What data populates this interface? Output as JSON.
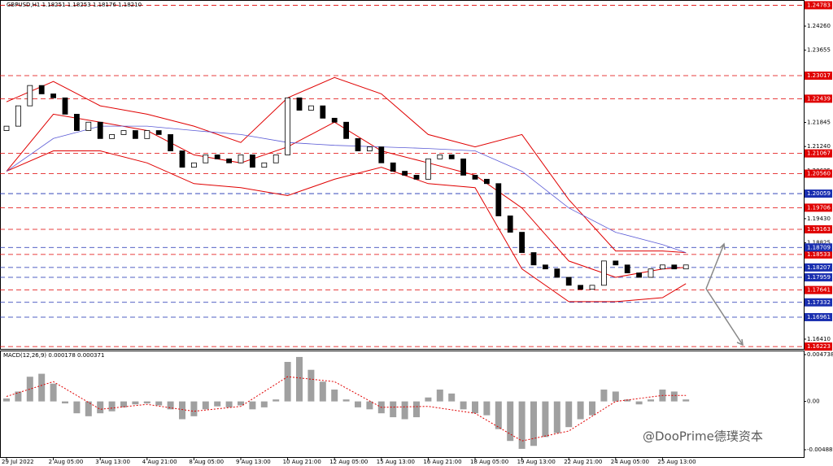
{
  "chart_data": [
    {
      "type": "candlestick",
      "title": "GBPUSD,H1 1.18251 1.18253 1.18176 1.18210",
      "watermark": "@DooPrime德璞资本",
      "color": "#000000",
      "categories": [
        "29 Jul 2022",
        null,
        null,
        null,
        "2 Aug 05:00",
        null,
        null,
        null,
        "3 Aug 13:00",
        null,
        null,
        null,
        "4 Aug 21:00",
        null,
        null,
        null,
        "8 Aug 05:00",
        null,
        null,
        null,
        "9 Aug 13:00",
        null,
        null,
        null,
        "10 Aug 21:00",
        null,
        null,
        null,
        "12 Aug 05:00",
        null,
        null,
        null,
        "15 Aug 13:00",
        null,
        null,
        null,
        "16 Aug 21:00",
        null,
        null,
        null,
        "18 Aug 05:00",
        null,
        null,
        null,
        "19 Aug 13:00",
        null,
        null,
        null,
        "22 Aug 21:00",
        null,
        null,
        null,
        "24 Aug 05:00",
        null,
        null,
        null,
        "25 Aug 13:00",
        null,
        null
      ],
      "open": [
        1.2164,
        1.2175,
        1.2226,
        1.2277,
        1.2256,
        1.2246,
        1.2205,
        1.2164,
        1.2185,
        1.2144,
        1.2154,
        1.2164,
        1.2144,
        1.2164,
        1.2154,
        1.2113,
        1.2072,
        1.2083,
        1.2103,
        1.2093,
        1.2083,
        1.2103,
        1.2072,
        1.2083,
        1.2103,
        1.2246,
        1.2215,
        1.2226,
        1.2195,
        1.2185,
        1.2144,
        1.2113,
        1.2123,
        1.2083,
        1.2062,
        1.2052,
        1.2042,
        1.2093,
        1.2103,
        1.2093,
        1.2052,
        1.2042,
        1.2031,
        1.195,
        1.1909,
        1.1858,
        1.1827,
        1.1817,
        1.1796,
        1.1776,
        1.1766,
        1.1776,
        1.1837,
        1.1827,
        1.1807,
        1.1796,
        1.1817,
        1.1827,
        1.1817
      ],
      "close": [
        1.2175,
        1.2226,
        1.2277,
        1.2256,
        1.2246,
        1.2205,
        1.2164,
        1.2185,
        1.2144,
        1.2154,
        1.2164,
        1.2144,
        1.2164,
        1.2154,
        1.2113,
        1.2072,
        1.2083,
        1.2103,
        1.2093,
        1.2083,
        1.2103,
        1.2072,
        1.2083,
        1.2103,
        1.2246,
        1.2215,
        1.2226,
        1.2195,
        1.2185,
        1.2144,
        1.2113,
        1.2123,
        1.2083,
        1.2062,
        1.2052,
        1.2042,
        1.2093,
        1.2103,
        1.2093,
        1.2052,
        1.2042,
        1.2031,
        1.195,
        1.1909,
        1.1858,
        1.1827,
        1.1817,
        1.1796,
        1.1776,
        1.1766,
        1.1776,
        1.1837,
        1.1827,
        1.1807,
        1.1796,
        1.1817,
        1.1827,
        1.1817,
        1.1827
      ],
      "bands": {
        "color": "#e00000",
        "x": [
          0,
          4,
          8,
          12,
          16,
          20,
          24,
          28,
          32,
          36,
          40,
          44,
          48,
          52,
          56,
          58
        ],
        "upper": [
          1.2236,
          1.2287,
          1.2226,
          1.2205,
          1.2175,
          1.2134,
          1.2246,
          1.2297,
          1.2256,
          1.2154,
          1.2123,
          1.2154,
          1.1991,
          1.1862,
          1.1862,
          1.1858
        ],
        "middle": [
          1.2062,
          1.2205,
          1.2185,
          1.2164,
          1.2103,
          1.2083,
          1.2123,
          1.2185,
          1.2113,
          1.2083,
          1.2052,
          1.197,
          1.1837,
          1.1796,
          1.1817,
          1.1821
        ],
        "lower": [
          1.2062,
          1.2113,
          1.2113,
          1.2083,
          1.2031,
          1.2021,
          1.2001,
          1.2042,
          1.2072,
          1.2031,
          1.2021,
          1.1817,
          1.1735,
          1.1735,
          1.1745,
          1.178
        ]
      },
      "ma": {
        "color": "#5b5bd6",
        "x": [
          0,
          4,
          8,
          12,
          16,
          20,
          24,
          28,
          32,
          36,
          40,
          44,
          48,
          52,
          56,
          58
        ],
        "values": [
          1.2062,
          1.2144,
          1.2175,
          1.2175,
          1.2164,
          1.2154,
          1.2134,
          1.2127,
          1.2123,
          1.2119,
          1.2113,
          1.2062,
          1.197,
          1.1909,
          1.1878,
          1.1858
        ]
      },
      "levels": [
        {
          "color": "#e00000",
          "values": [
            1.24783,
            1.23017,
            1.22439,
            1.21067,
            {
              "value": 1.2056,
              "label": "1.20560"
            },
            1.19706,
            1.19163,
            1.18533,
            1.17641,
            1.16223
          ]
        },
        {
          "color": "#1a2fb0",
          "values": [
            1.20059,
            1.18709,
            1.18207,
            1.17959,
            1.17332,
            1.16961
          ]
        }
      ],
      "ylim": [
        1.24914,
        1.16165
      ],
      "yticks": [
        {
          "value": 1.2426,
          "label": "1.24260"
        },
        1.23655,
        1.21845,
        {
          "value": 1.2124,
          "label": "1.21240"
        },
        1.20635,
        {
          "value": 1.1943,
          "label": "1.19430"
        },
        1.18825,
        {
          "value": 1.1641,
          "label": "1.16410"
        }
      ]
    },
    {
      "type": "macd",
      "title": "MACD(12,26,9) 0.000178 0.000371",
      "color": "#808080",
      "values": [
        0.0003,
        0.001,
        0.0025,
        0.0028,
        0.0018,
        -0.0002,
        -0.0012,
        -0.0015,
        -0.0012,
        -0.001,
        -0.0006,
        -0.0003,
        -0.0002,
        -0.0004,
        -0.0008,
        -0.0018,
        -0.0015,
        -0.0008,
        -0.0005,
        -0.0006,
        -0.0004,
        -0.0008,
        -0.0006,
        0.0002,
        0.004,
        0.0045,
        0.0032,
        0.002,
        0.0012,
        0.0002,
        -0.0006,
        -0.0008,
        -0.0012,
        -0.0016,
        -0.0018,
        -0.0016,
        0.0004,
        0.0012,
        0.0008,
        -0.0008,
        -0.0012,
        -0.0014,
        -0.0028,
        -0.004,
        -0.0048,
        -0.0045,
        -0.0036,
        -0.0032,
        -0.0026,
        -0.0018,
        -0.0014,
        0.0012,
        0.001,
        0.0002,
        -0.0003,
        0.0002,
        0.0012,
        0.001,
        0.0002
      ],
      "signal": {
        "color": "#e00000",
        "x": [
          0,
          4,
          8,
          12,
          16,
          20,
          24,
          28,
          32,
          36,
          40,
          44,
          48,
          52,
          56,
          58
        ],
        "values": [
          0.0005,
          0.002,
          -0.0008,
          -0.0003,
          -0.001,
          -0.0005,
          0.0025,
          0.002,
          -0.0006,
          -0.0005,
          -0.0012,
          -0.004,
          -0.003,
          0.0,
          0.0006,
          0.0006
        ]
      },
      "ylim": [
        0.00507,
        -0.00563
      ],
      "yticks": [
        0.004738,
        {
          "value": 0,
          "label": "0.00"
        },
        -0.004889
      ]
    }
  ]
}
